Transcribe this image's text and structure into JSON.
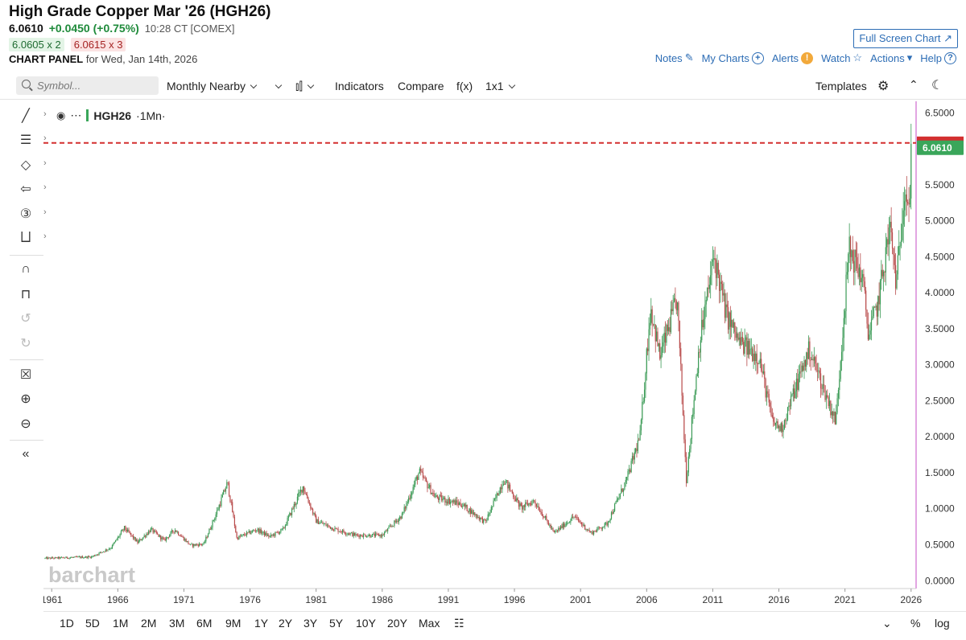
{
  "header": {
    "title": "High Grade Copper Mar '26 (HGH26)",
    "last": "6.0610",
    "change": "+0.0450 (+0.75%)",
    "time": "10:28 CT [COMEX]",
    "bid": "6.0605 x 2",
    "ask": "6.0615 x 3",
    "panel_label": "CHART PANEL",
    "panel_date": "for Wed, Jan 14th, 2026",
    "fullscreen": "Full Screen Chart",
    "links": {
      "notes": "Notes",
      "mycharts": "My Charts",
      "alerts": "Alerts",
      "watch": "Watch",
      "actions": "Actions",
      "help": "Help"
    }
  },
  "toolbar": {
    "search_placeholder": "Symbol...",
    "aggregation": "Monthly Nearby",
    "indicators": "Indicators",
    "compare": "Compare",
    "fx": "f(x)",
    "layout": "1x1",
    "templates": "Templates"
  },
  "legend": {
    "symbol": "HGH26",
    "interval": "·1Mn·"
  },
  "watermark": "barchart",
  "range_buttons": [
    "1D",
    "5D",
    "1M",
    "2M",
    "3M",
    "6M",
    "9M",
    "1Y",
    "2Y",
    "3Y",
    "5Y",
    "10Y",
    "20Y",
    "Max"
  ],
  "bottom_right": {
    "pct": "%",
    "log": "log"
  },
  "colors": {
    "up": "#3a9a55",
    "down": "#b84a4a",
    "accent": "#2d6db5",
    "price_tag": "#3aa65a",
    "ref_line": "#d32f2f",
    "axis": "#c44bc4"
  },
  "chart_data": {
    "type": "candlestick",
    "interval": "monthly",
    "x_ticks": [
      "1961",
      "1966",
      "1971",
      "1976",
      "1981",
      "1986",
      "1991",
      "1996",
      "2001",
      "2006",
      "2011",
      "2016",
      "2021",
      "2026"
    ],
    "y_ticks": [
      "6.5000",
      "6.0000",
      "5.5000",
      "5.0000",
      "4.5000",
      "4.0000",
      "3.5000",
      "3.0000",
      "2.5000",
      "2.0000",
      "1.5000",
      "1.0000",
      "0.5000",
      "0.0000"
    ],
    "ylim": [
      0,
      6.65
    ],
    "xlim": [
      1960.5,
      2026.5
    ],
    "last_price": "6.0610",
    "reference_line": 6.06,
    "price_path": [
      [
        1960.5,
        0.3
      ],
      [
        1964,
        0.32
      ],
      [
        1965.5,
        0.45
      ],
      [
        1966.5,
        0.72
      ],
      [
        1967.5,
        0.52
      ],
      [
        1968.5,
        0.7
      ],
      [
        1969.5,
        0.55
      ],
      [
        1970.3,
        0.7
      ],
      [
        1971.5,
        0.48
      ],
      [
        1972.5,
        0.5
      ],
      [
        1973.5,
        0.95
      ],
      [
        1974.3,
        1.35
      ],
      [
        1975,
        0.58
      ],
      [
        1976.5,
        0.7
      ],
      [
        1977.5,
        0.6
      ],
      [
        1978.5,
        0.7
      ],
      [
        1980,
        1.3
      ],
      [
        1981,
        0.82
      ],
      [
        1982.5,
        0.7
      ],
      [
        1984,
        0.62
      ],
      [
        1986,
        0.62
      ],
      [
        1987.5,
        0.9
      ],
      [
        1988.8,
        1.5
      ],
      [
        1990,
        1.15
      ],
      [
        1992,
        1.05
      ],
      [
        1993.8,
        0.8
      ],
      [
        1995.2,
        1.4
      ],
      [
        1996.5,
        1.0
      ],
      [
        1997.5,
        1.1
      ],
      [
        1999,
        0.65
      ],
      [
        2000.5,
        0.88
      ],
      [
        2001.8,
        0.65
      ],
      [
        2003,
        0.78
      ],
      [
        2004.5,
        1.4
      ],
      [
        2005.5,
        2.0
      ],
      [
        2006.3,
        3.8
      ],
      [
        2007,
        3.1
      ],
      [
        2008.3,
        3.9
      ],
      [
        2009,
        1.4
      ],
      [
        2010,
        3.3
      ],
      [
        2011.1,
        4.5
      ],
      [
        2012,
        3.7
      ],
      [
        2013,
        3.3
      ],
      [
        2014.5,
        3.1
      ],
      [
        2015.5,
        2.2
      ],
      [
        2016.2,
        2.1
      ],
      [
        2017.5,
        2.8
      ],
      [
        2018.3,
        3.2
      ],
      [
        2019.5,
        2.6
      ],
      [
        2020.3,
        2.2
      ],
      [
        2021.3,
        4.6
      ],
      [
        2022.3,
        4.2
      ],
      [
        2022.8,
        3.4
      ],
      [
        2023.5,
        3.85
      ],
      [
        2024.4,
        4.9
      ],
      [
        2024.9,
        4.1
      ],
      [
        2025.5,
        5.5
      ],
      [
        2025.9,
        5.2
      ],
      [
        2026.05,
        6.06
      ]
    ]
  }
}
